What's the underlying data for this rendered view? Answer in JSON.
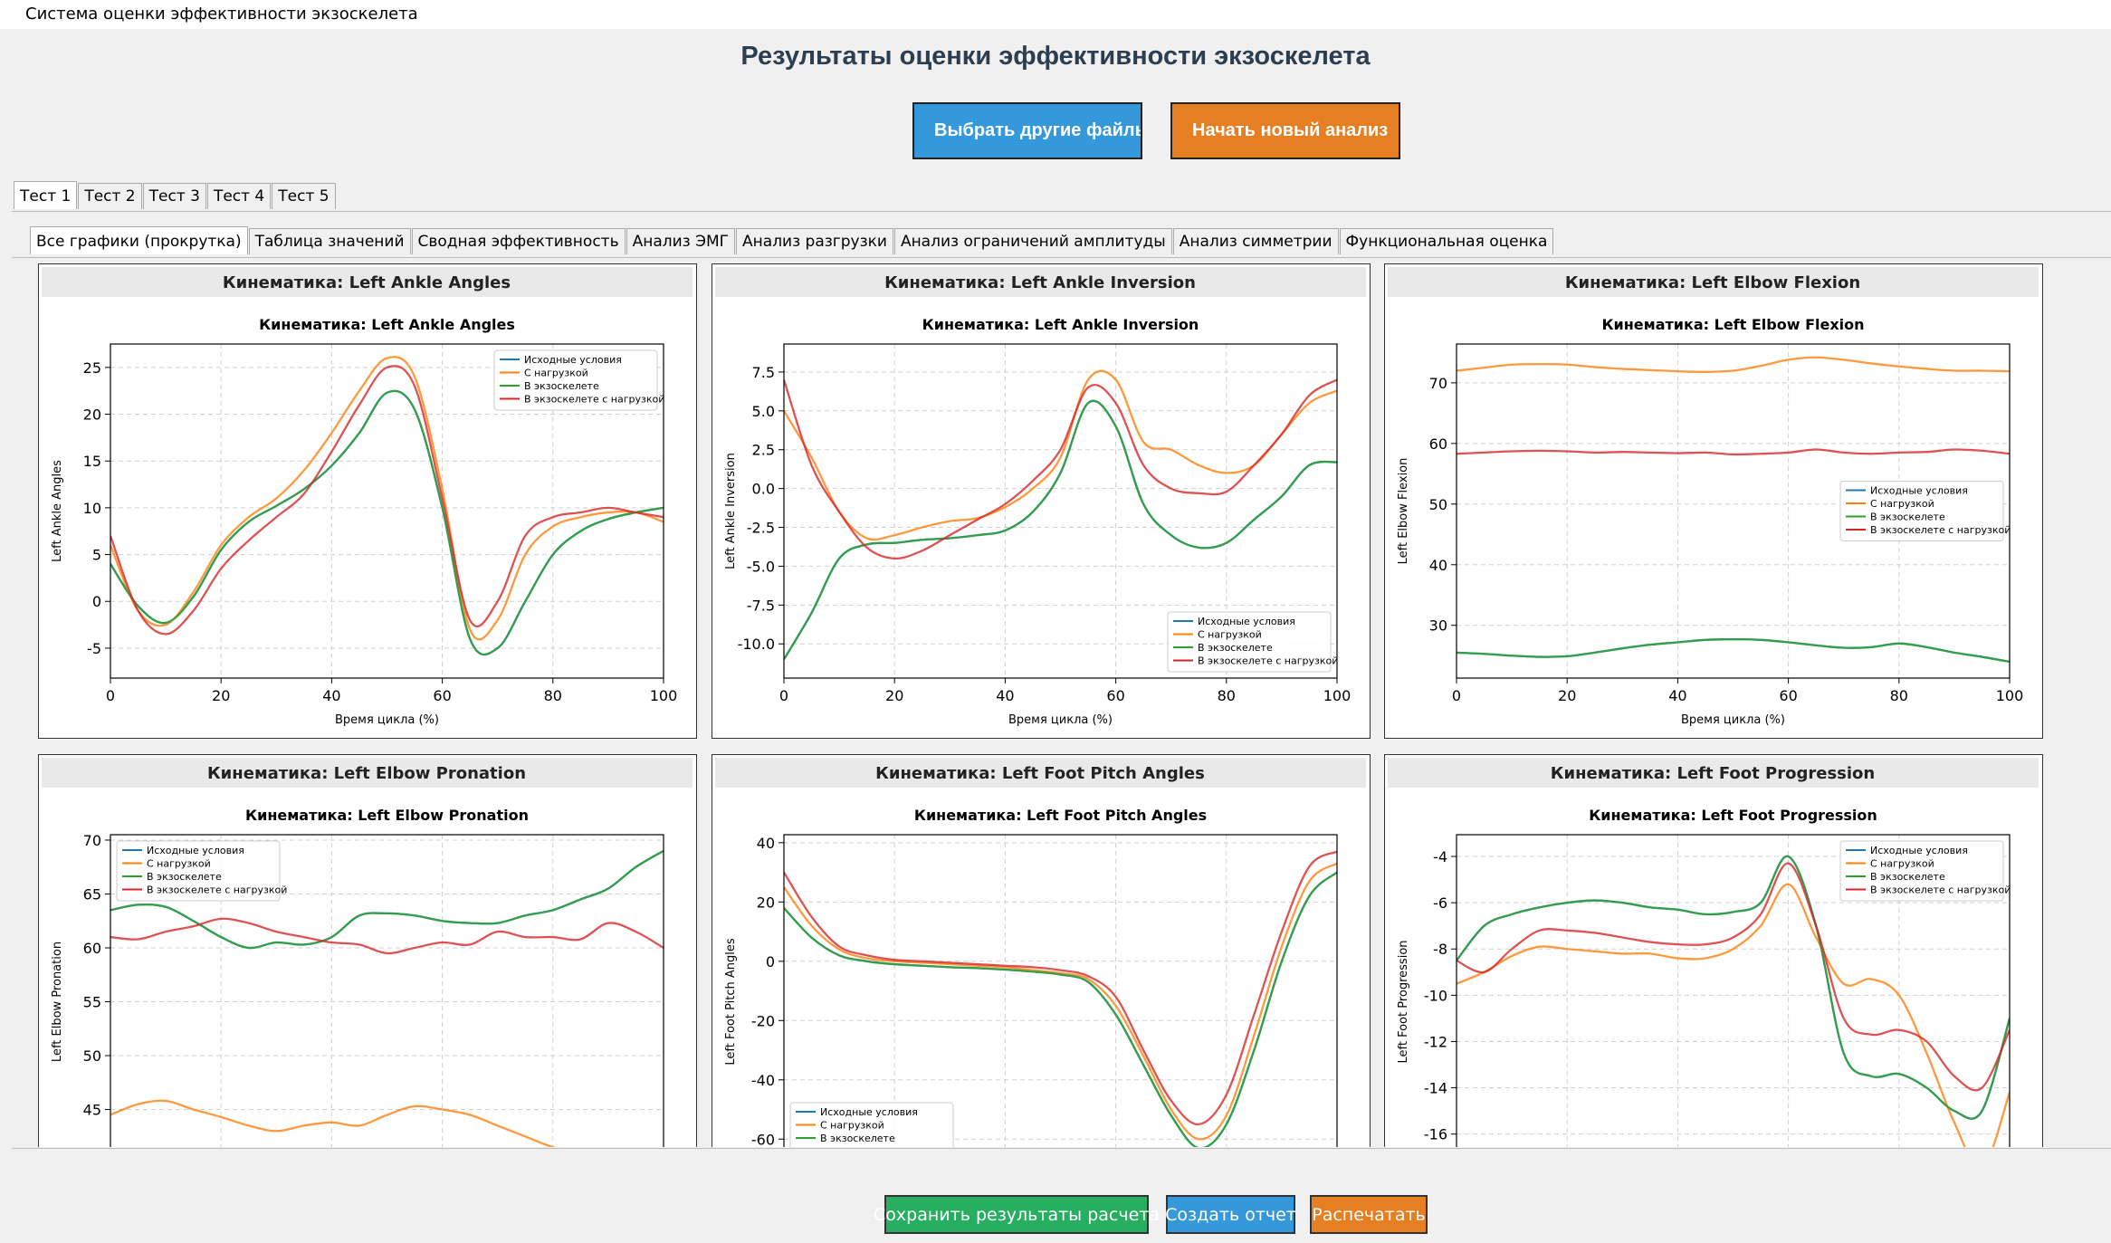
{
  "window_title": "Система оценки эффективности экзоскелета",
  "header": {
    "title": "Результаты оценки эффективности экзоскелета",
    "buttons": [
      "Выбрать другие файлы",
      "Начать новый анализ"
    ]
  },
  "tabs": [
    "Тест 1",
    "Тест 2",
    "Тест 3",
    "Тест 4",
    "Тест 5"
  ],
  "subtabs": [
    "Все графики (прокрутка)",
    "Таблица значений",
    "Сводная эффективность",
    "Анализ ЭМГ",
    "Анализ разгрузки",
    "Анализ ограничений амплитуды",
    "Анализ симметрии",
    "Функциональная оценка"
  ],
  "footer_buttons": [
    "Сохранить результаты расчета",
    "Создать отчет",
    "Распечатать"
  ],
  "chart_data": [
    {
      "type": "line",
      "panel_title": "Кинематика: Left Ankle Angles",
      "title": "Кинематика: Left Ankle Angles",
      "xlabel": "Время цикла (%)",
      "ylabel": "Left Ankle Angles",
      "x": [
        0,
        5,
        10,
        15,
        20,
        25,
        30,
        35,
        40,
        45,
        50,
        55,
        60,
        65,
        70,
        75,
        80,
        85,
        90,
        95,
        100
      ],
      "xlim": [
        0,
        100
      ],
      "xticks": [
        0,
        20,
        40,
        60,
        80,
        100
      ],
      "ylim": [
        -8.2,
        27.5
      ],
      "yticks": [
        -5,
        0,
        5,
        10,
        15,
        20,
        25
      ],
      "grid": true,
      "legend": "upper right",
      "series": [
        {
          "name": "Исходные условия",
          "color": "#1f77b4",
          "values": [
            4,
            -0.5,
            -2.3,
            0.5,
            5.5,
            8.5,
            10.2,
            12,
            14.5,
            18,
            22.3,
            20.5,
            10,
            -4,
            -5,
            0,
            5,
            7.5,
            8.8,
            9.5,
            10
          ]
        },
        {
          "name": "С нагрузкой",
          "color": "#ff7f0e",
          "values": [
            6,
            -1,
            -2.5,
            1,
            6,
            9,
            11,
            14,
            18,
            22.5,
            26,
            24,
            12,
            -3,
            -2,
            5,
            8,
            9,
            9.5,
            9.5,
            8.5
          ]
        },
        {
          "name": "В экзоскелете",
          "color": "#2ca02c",
          "values": [
            4,
            -0.5,
            -2.3,
            0.5,
            5.5,
            8.5,
            10.2,
            12,
            14.5,
            18,
            22.3,
            20.5,
            10,
            -4,
            -5,
            0,
            5,
            7.5,
            8.8,
            9.5,
            10
          ]
        },
        {
          "name": "В экзоскелете с нагрузкой",
          "color": "#d62728",
          "values": [
            7,
            -1,
            -3.5,
            -1,
            3.5,
            6.5,
            9,
            11.5,
            16,
            21,
            25,
            23,
            11,
            -2,
            0,
            7,
            9,
            9.5,
            10,
            9.5,
            9
          ]
        }
      ]
    },
    {
      "type": "line",
      "panel_title": "Кинематика: Left Ankle Inversion",
      "title": "Кинематика: Left Ankle Inversion",
      "xlabel": "Время цикла (%)",
      "ylabel": "Left Ankle Inversion",
      "x": [
        0,
        5,
        10,
        15,
        20,
        25,
        30,
        35,
        40,
        45,
        50,
        55,
        60,
        65,
        70,
        75,
        80,
        85,
        90,
        95,
        100
      ],
      "xlim": [
        0,
        100
      ],
      "xticks": [
        0,
        20,
        40,
        60,
        80,
        100
      ],
      "ylim": [
        -12.2,
        9.3
      ],
      "yticks": [
        {
          "value": -10,
          "label": "-10.0"
        },
        -7.5,
        {
          "value": -5,
          "label": "-5.0"
        },
        -2.5,
        {
          "value": 0,
          "label": "0.0"
        },
        2.5,
        {
          "value": 5,
          "label": "5.0"
        },
        7.5
      ],
      "grid": true,
      "legend": "lower right",
      "series": [
        {
          "name": "Исходные условия",
          "color": "#1f77b4",
          "values": [
            -11,
            -8,
            -4.5,
            -3.6,
            -3.5,
            -3.3,
            -3.2,
            -3,
            -2.7,
            -1.5,
            1,
            5.5,
            4,
            -1,
            -3,
            -3.8,
            -3.5,
            -2,
            -0.5,
            1.5,
            1.7
          ]
        },
        {
          "name": "С нагрузкой",
          "color": "#ff7f0e",
          "values": [
            5,
            2,
            -1.5,
            -3.2,
            -3,
            -2.5,
            -2.1,
            -1.9,
            -1.2,
            0,
            2,
            7,
            7,
            3,
            2.5,
            1.5,
            1,
            1.5,
            3.5,
            5.5,
            6.3
          ]
        },
        {
          "name": "В экзоскелете",
          "color": "#2ca02c",
          "values": [
            -11,
            -8,
            -4.5,
            -3.6,
            -3.5,
            -3.3,
            -3.2,
            -3,
            -2.7,
            -1.5,
            1,
            5.5,
            4,
            -1,
            -3,
            -3.8,
            -3.5,
            -2,
            -0.5,
            1.5,
            1.7
          ]
        },
        {
          "name": "В экзоскелете с нагрузкой",
          "color": "#d62728",
          "values": [
            7,
            1.5,
            -1.5,
            -3.8,
            -4.5,
            -4,
            -3,
            -2,
            -1,
            0.5,
            2.5,
            6.5,
            5.5,
            1.5,
            0,
            -0.3,
            -0.2,
            1.5,
            3.5,
            6,
            7
          ]
        }
      ]
    },
    {
      "type": "line",
      "panel_title": "Кинематика: Left Elbow Flexion",
      "title": "Кинематика: Left Elbow Flexion",
      "xlabel": "Время цикла (%)",
      "ylabel": "Left Elbow Flexion",
      "x": [
        0,
        5,
        10,
        15,
        20,
        25,
        30,
        35,
        40,
        45,
        50,
        55,
        60,
        65,
        70,
        75,
        80,
        85,
        90,
        95,
        100
      ],
      "xlim": [
        0,
        100
      ],
      "xticks": [
        0,
        20,
        40,
        60,
        80,
        100
      ],
      "ylim": [
        21.3,
        76.4
      ],
      "yticks": [
        30,
        40,
        50,
        60,
        70
      ],
      "grid": true,
      "legend": "center right",
      "series": [
        {
          "name": "Исходные условия",
          "color": "#1f77b4",
          "values": [
            25.5,
            25.3,
            25,
            24.8,
            24.9,
            25.5,
            26.2,
            26.8,
            27.2,
            27.6,
            27.7,
            27.6,
            27.2,
            26.7,
            26.3,
            26.4,
            27,
            26.4,
            25.5,
            24.8,
            24
          ]
        },
        {
          "name": "С нагрузкой",
          "color": "#ff7f0e",
          "values": [
            72,
            72.5,
            73,
            73.1,
            73,
            72.6,
            72.3,
            72.1,
            71.9,
            71.8,
            72,
            72.8,
            73.8,
            74.2,
            73.8,
            73.2,
            72.7,
            72.3,
            72,
            72,
            71.9
          ]
        },
        {
          "name": "В экзоскелете",
          "color": "#2ca02c",
          "values": [
            25.5,
            25.3,
            25,
            24.8,
            24.9,
            25.5,
            26.2,
            26.8,
            27.2,
            27.6,
            27.7,
            27.6,
            27.2,
            26.7,
            26.3,
            26.4,
            27,
            26.4,
            25.5,
            24.8,
            24
          ]
        },
        {
          "name": "В экзоскелете с нагрузкой",
          "color": "#d62728",
          "values": [
            58.3,
            58.5,
            58.7,
            58.8,
            58.7,
            58.5,
            58.6,
            58.5,
            58.4,
            58.5,
            58.2,
            58.3,
            58.5,
            59,
            58.5,
            58.3,
            58.5,
            58.6,
            59,
            58.8,
            58.3
          ]
        }
      ]
    },
    {
      "type": "line",
      "panel_title": "Кинематика: Left Elbow Pronation",
      "title": "Кинематика: Left Elbow Pronation",
      "ylabel": "Left Elbow Pronation",
      "x": [
        0,
        5,
        10,
        15,
        20,
        25,
        30,
        35,
        40,
        45,
        50,
        55,
        60,
        65,
        70,
        75,
        80,
        85,
        90,
        95,
        100
      ],
      "xlim": [
        0,
        100
      ],
      "xticks": [
        0,
        20,
        40,
        60,
        80,
        100
      ],
      "ylim": [
        39.5,
        70.5
      ],
      "yticks": [
        45,
        50,
        55,
        60,
        65,
        70
      ],
      "grid": true,
      "legend": "upper left",
      "series": [
        {
          "name": "Исходные условия",
          "color": "#1f77b4",
          "values": [
            63.5,
            64,
            63.8,
            62.5,
            61,
            60,
            60.5,
            60.3,
            61,
            63,
            63.2,
            63,
            62.5,
            62.3,
            62.3,
            63,
            63.5,
            64.5,
            65.5,
            67.5,
            69
          ]
        },
        {
          "name": "С нагрузкой",
          "color": "#ff7f0e",
          "values": [
            44.5,
            45.5,
            45.8,
            45,
            44.3,
            43.5,
            43,
            43.5,
            43.8,
            43.5,
            44.5,
            45.3,
            45,
            44.5,
            43.5,
            42.5,
            41.5,
            41,
            40.5,
            40.5,
            40.5
          ]
        },
        {
          "name": "В экзоскелете",
          "color": "#2ca02c",
          "values": [
            63.5,
            64,
            63.8,
            62.5,
            61,
            60,
            60.5,
            60.3,
            61,
            63,
            63.2,
            63,
            62.5,
            62.3,
            62.3,
            63,
            63.5,
            64.5,
            65.5,
            67.5,
            69
          ]
        },
        {
          "name": "В экзоскелете с нагрузкой",
          "color": "#d62728",
          "values": [
            61,
            60.8,
            61.5,
            62,
            62.7,
            62.3,
            61.5,
            61,
            60.5,
            60.3,
            59.5,
            60,
            60.5,
            60.3,
            61.5,
            61,
            61,
            60.8,
            62.3,
            61.5,
            60
          ]
        }
      ]
    },
    {
      "type": "line",
      "panel_title": "Кинематика: Left Foot Pitch Angles",
      "title": "Кинематика: Left Foot Pitch Angles",
      "ylabel": "Left Foot Pitch Angles",
      "x": [
        0,
        5,
        10,
        15,
        20,
        25,
        30,
        35,
        40,
        45,
        50,
        55,
        60,
        65,
        70,
        75,
        80,
        85,
        90,
        95,
        100
      ],
      "xlim": [
        0,
        100
      ],
      "xticks": [
        0,
        20,
        40,
        60,
        80,
        100
      ],
      "ylim": [
        -70,
        42.7
      ],
      "yticks": [
        -60,
        -40,
        -20,
        0,
        20,
        40
      ],
      "grid": true,
      "legend": "lower left",
      "series": [
        {
          "name": "Исходные условия",
          "color": "#1f77b4",
          "values": [
            18,
            8,
            2,
            0,
            -1,
            -1.5,
            -2,
            -2.3,
            -2.8,
            -3.5,
            -4.5,
            -7,
            -18,
            -35,
            -52,
            -63,
            -55,
            -30,
            0,
            22,
            30
          ]
        },
        {
          "name": "С нагрузкой",
          "color": "#ff7f0e",
          "values": [
            25,
            12,
            4,
            1,
            0,
            -0.5,
            -1,
            -1.5,
            -2,
            -3,
            -4,
            -6,
            -15,
            -32,
            -50,
            -60,
            -52,
            -25,
            5,
            27,
            33
          ]
        },
        {
          "name": "В экзоскелете",
          "color": "#2ca02c",
          "values": [
            18,
            8,
            2,
            0,
            -1,
            -1.5,
            -2,
            -2.3,
            -2.8,
            -3.5,
            -4.5,
            -7,
            -18,
            -35,
            -52,
            -63,
            -55,
            -30,
            0,
            22,
            30
          ]
        },
        {
          "name": "В экзоскелете с нагрузкой",
          "color": "#d62728",
          "values": [
            30,
            15,
            5,
            2,
            0.5,
            0,
            -0.5,
            -1,
            -1.5,
            -2,
            -3,
            -5,
            -12,
            -30,
            -47,
            -55,
            -45,
            -18,
            10,
            32,
            37
          ]
        }
      ]
    },
    {
      "type": "line",
      "panel_title": "Кинематика: Left Foot Progression",
      "title": "Кинематика: Left Foot Progression",
      "ylabel": "Left Foot Progression",
      "x": [
        0,
        5,
        10,
        15,
        20,
        25,
        30,
        35,
        40,
        45,
        50,
        55,
        60,
        65,
        70,
        75,
        80,
        85,
        90,
        95,
        100
      ],
      "xlim": [
        0,
        100
      ],
      "xticks": [
        0,
        20,
        40,
        60,
        80,
        100
      ],
      "ylim": [
        -17.5,
        -3.06
      ],
      "yticks": [
        -16,
        -14,
        -12,
        -10,
        -8,
        -6,
        -4
      ],
      "grid": true,
      "legend": "upper right",
      "series": [
        {
          "name": "Исходные условия",
          "color": "#1f77b4",
          "values": [
            -8.5,
            -7,
            -6.5,
            -6.2,
            -6,
            -5.9,
            -6,
            -6.2,
            -6.3,
            -6.5,
            -6.4,
            -6,
            -4,
            -7,
            -12.5,
            -13.5,
            -13.4,
            -14,
            -15,
            -15,
            -11
          ]
        },
        {
          "name": "С нагрузкой",
          "color": "#ff7f0e",
          "values": [
            -9.5,
            -9,
            -8.3,
            -7.9,
            -8,
            -8.1,
            -8.2,
            -8.2,
            -8.4,
            -8.4,
            -8,
            -7,
            -5.2,
            -7.5,
            -9.5,
            -9.3,
            -10,
            -12.5,
            -15.5,
            -17.5,
            -14.2
          ]
        },
        {
          "name": "В экзоскелете",
          "color": "#2ca02c",
          "values": [
            -8.5,
            -7,
            -6.5,
            -6.2,
            -6,
            -5.9,
            -6,
            -6.2,
            -6.3,
            -6.5,
            -6.4,
            -6,
            -4,
            -7,
            -12.5,
            -13.5,
            -13.4,
            -14,
            -15,
            -15,
            -11
          ]
        },
        {
          "name": "В экзоскелете с нагрузкой",
          "color": "#d62728",
          "values": [
            -8.5,
            -9,
            -8,
            -7.2,
            -7.2,
            -7.3,
            -7.5,
            -7.7,
            -7.8,
            -7.8,
            -7.5,
            -6.5,
            -4.3,
            -7,
            -11,
            -11.7,
            -11.5,
            -12,
            -13.5,
            -14,
            -11.5
          ]
        }
      ]
    }
  ]
}
